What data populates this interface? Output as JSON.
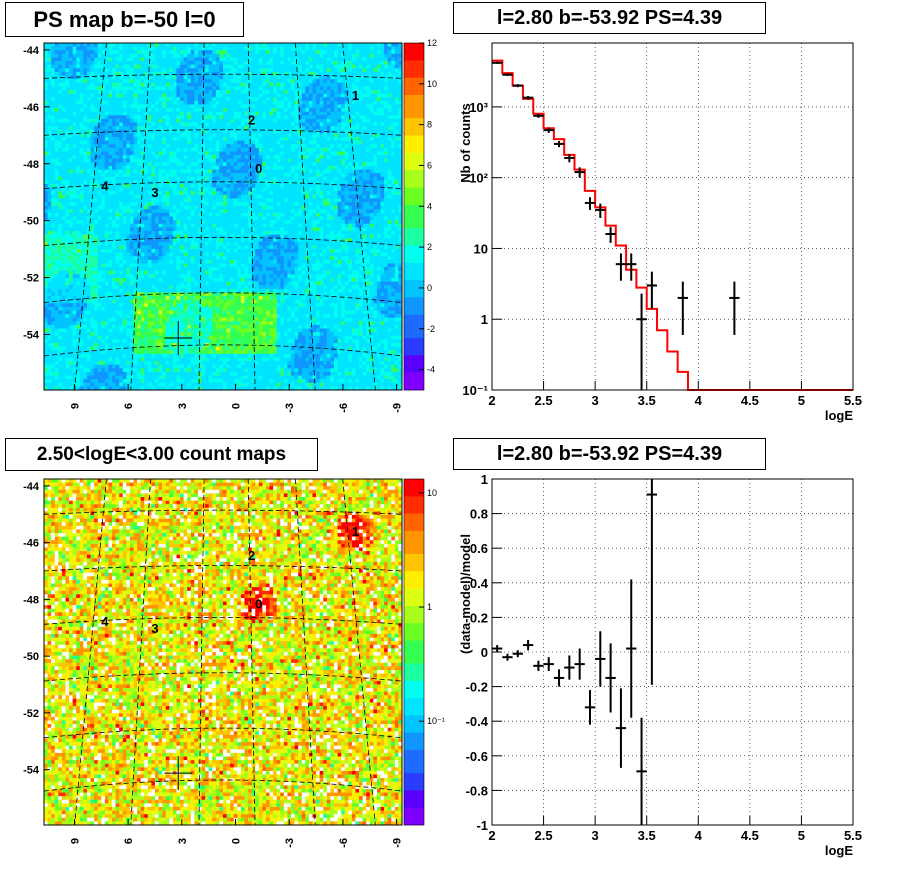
{
  "titles": {
    "map_top": "PS map b=-50 l=0",
    "spec_top": "l=2.80 b=-53.92 PS=4.39",
    "map_bottom": "2.50<logE<3.00 count maps",
    "spec_bottom": "l=2.80 b=-53.92 PS=4.39"
  },
  "colors": {
    "model_line": "#ff0000",
    "data_points": "#000000",
    "grid": "#000000"
  },
  "chart_data": [
    {
      "type": "heatmap",
      "title": "PS map b=-50 l=0",
      "x_tick_labels": [
        "9",
        "6",
        "3",
        "0",
        "-3",
        "-6",
        "-9"
      ],
      "y_tick_labels": [
        "-44",
        "-46",
        "-48",
        "-50",
        "-52",
        "-54"
      ],
      "colorbar_labels": [
        "12",
        "10",
        "8",
        "6",
        "4",
        "2",
        "0",
        "-2",
        "-4"
      ],
      "colorbar_range": [
        -5,
        12
      ],
      "sources": [
        "0",
        "1",
        "2",
        "3",
        "4"
      ],
      "background": "cyan (~0-2) with blue (~0 to -2) patches and green (~4) near the cross"
    },
    {
      "type": "line",
      "title": "l=2.80 b=-53.92 PS=4.39",
      "xlabel": "logE",
      "ylabel": "Nb of counts",
      "log_y": true,
      "xlim": [
        2,
        5.5
      ],
      "ylim": [
        0.1,
        8000
      ],
      "grid": true,
      "x_tick_labels": [
        "2",
        "2.5",
        "3",
        "3.5",
        "4",
        "4.5",
        "5",
        "5.5"
      ],
      "y_tick_labels": [
        "10^-1",
        "1",
        "10",
        "10^2",
        "10^3"
      ],
      "model_step": {
        "bin_edges": [
          2.0,
          2.1,
          2.2,
          2.3,
          2.4,
          2.5,
          2.6,
          2.7,
          2.8,
          2.9,
          3.0,
          3.1,
          3.2,
          3.3,
          3.4,
          3.5,
          3.6,
          3.7,
          3.8,
          3.9,
          4.0,
          5.5
        ],
        "values": [
          4500,
          3000,
          2000,
          1300,
          800,
          500,
          350,
          210,
          130,
          65,
          38,
          21,
          11,
          5,
          2.8,
          1.4,
          0.7,
          0.35,
          0.18,
          0.1,
          0.1
        ]
      },
      "data_points": [
        {
          "x": 2.05,
          "y": 4200,
          "ylo": 4050,
          "yhi": 4350
        },
        {
          "x": 2.15,
          "y": 2850,
          "ylo": 2730,
          "yhi": 2970
        },
        {
          "x": 2.25,
          "y": 2000,
          "ylo": 1900,
          "yhi": 2100
        },
        {
          "x": 2.35,
          "y": 1350,
          "ylo": 1270,
          "yhi": 1430
        },
        {
          "x": 2.45,
          "y": 750,
          "ylo": 700,
          "yhi": 800
        },
        {
          "x": 2.55,
          "y": 470,
          "ylo": 430,
          "yhi": 510
        },
        {
          "x": 2.65,
          "y": 300,
          "ylo": 270,
          "yhi": 330
        },
        {
          "x": 2.75,
          "y": 190,
          "ylo": 165,
          "yhi": 215
        },
        {
          "x": 2.85,
          "y": 120,
          "ylo": 100,
          "yhi": 140
        },
        {
          "x": 2.95,
          "y": 44,
          "ylo": 35,
          "yhi": 53
        },
        {
          "x": 3.05,
          "y": 35,
          "ylo": 27,
          "yhi": 43
        },
        {
          "x": 3.15,
          "y": 16,
          "ylo": 12,
          "yhi": 20
        },
        {
          "x": 3.25,
          "y": 6,
          "ylo": 3.5,
          "yhi": 8.5
        },
        {
          "x": 3.35,
          "y": 6,
          "ylo": 3.5,
          "yhi": 8.5
        },
        {
          "x": 3.45,
          "y": 1,
          "ylo": 0.1,
          "yhi": 2.3
        },
        {
          "x": 3.55,
          "y": 3,
          "ylo": 1.4,
          "yhi": 4.7
        },
        {
          "x": 3.85,
          "y": 2,
          "ylo": 0.6,
          "yhi": 3.4
        },
        {
          "x": 4.35,
          "y": 2,
          "ylo": 0.6,
          "yhi": 3.4
        }
      ]
    },
    {
      "type": "heatmap",
      "title": "2.50<logE<3.00 count maps",
      "x_tick_labels": [
        "9",
        "6",
        "3",
        "0",
        "-3",
        "-6",
        "-9"
      ],
      "y_tick_labels": [
        "-44",
        "-46",
        "-48",
        "-50",
        "-52",
        "-54"
      ],
      "colorbar_labels": [
        "10",
        "1",
        "10^-1"
      ],
      "colorbar_log": true,
      "sources": [
        "0",
        "1",
        "2",
        "3",
        "4"
      ],
      "background": "noisy yellow/green counts with red hot spots at sources 0 and 1"
    },
    {
      "type": "scatter",
      "title": "l=2.80 b=-53.92 PS=4.39",
      "xlabel": "logE",
      "ylabel": "(data-model)/model",
      "xlim": [
        2,
        5.5
      ],
      "ylim": [
        -1,
        1
      ],
      "grid": true,
      "x_tick_labels": [
        "2",
        "2.5",
        "3",
        "3.5",
        "4",
        "4.5",
        "5",
        "5.5"
      ],
      "y_tick_labels": [
        "1",
        "0.8",
        "0.6",
        "0.4",
        "0.2",
        "0",
        "-0.2",
        "-0.4",
        "-0.6",
        "-0.8",
        "-1"
      ],
      "data_points": [
        {
          "x": 2.05,
          "y": 0.02,
          "err": 0.02
        },
        {
          "x": 2.15,
          "y": -0.03,
          "err": 0.02
        },
        {
          "x": 2.25,
          "y": -0.01,
          "err": 0.02
        },
        {
          "x": 2.35,
          "y": 0.04,
          "err": 0.03
        },
        {
          "x": 2.45,
          "y": -0.08,
          "err": 0.03
        },
        {
          "x": 2.55,
          "y": -0.07,
          "err": 0.04
        },
        {
          "x": 2.65,
          "y": -0.15,
          "err": 0.05
        },
        {
          "x": 2.75,
          "y": -0.09,
          "err": 0.07
        },
        {
          "x": 2.85,
          "y": -0.07,
          "err": 0.09
        },
        {
          "x": 2.95,
          "y": -0.32,
          "err": 0.1
        },
        {
          "x": 3.05,
          "y": -0.04,
          "err": 0.16
        },
        {
          "x": 3.15,
          "y": -0.15,
          "err": 0.2
        },
        {
          "x": 3.25,
          "y": -0.44,
          "err": 0.23
        },
        {
          "x": 3.35,
          "y": 0.02,
          "err": 0.4
        },
        {
          "x": 3.45,
          "y": -0.69,
          "err": 0.31
        },
        {
          "x": 3.55,
          "y": 0.91,
          "err": 1.1
        }
      ]
    }
  ]
}
